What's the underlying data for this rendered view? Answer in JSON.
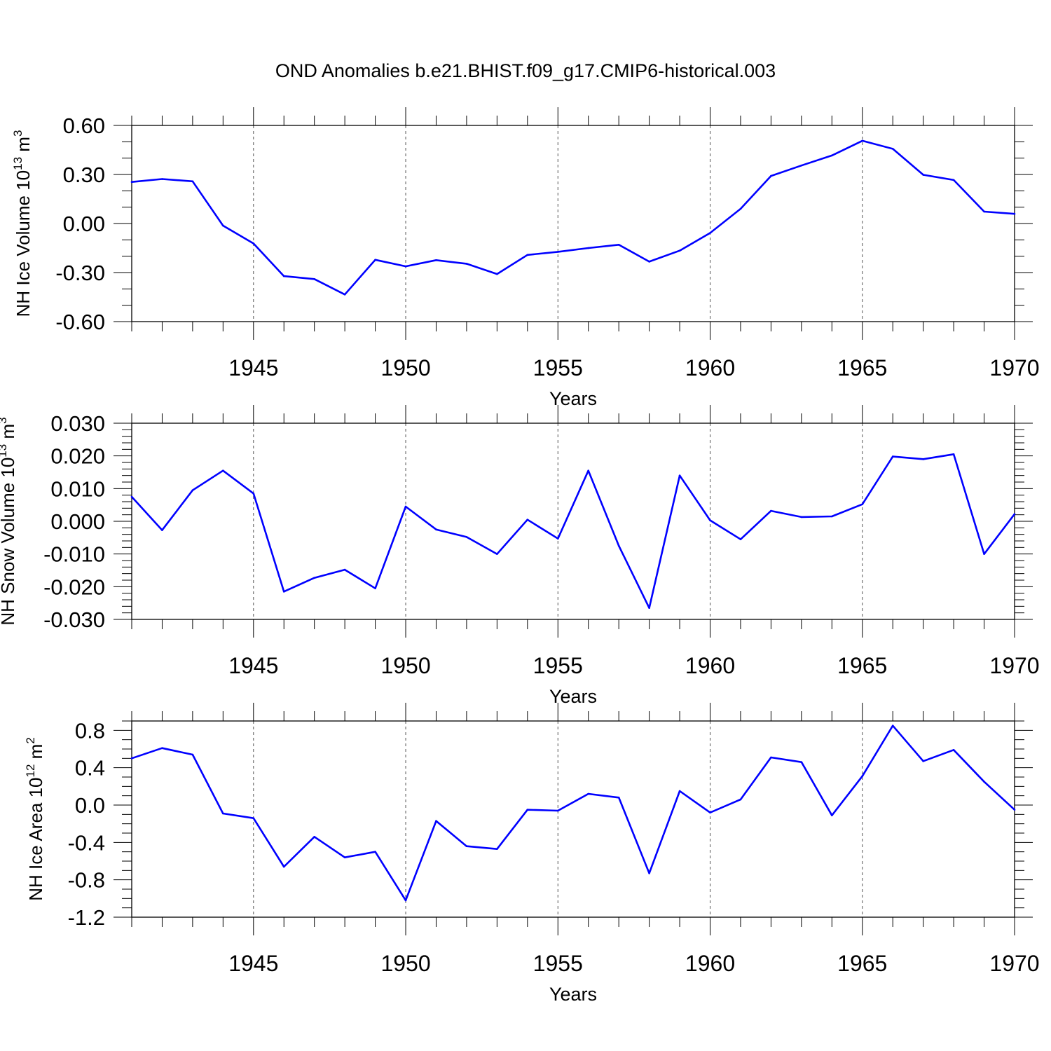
{
  "title": "OND Anomalies b.e21.BHIST.f09_g17.CMIP6-historical.003",
  "line_color": "#0000ff",
  "chart_data": [
    {
      "type": "line",
      "xlabel": "Years",
      "ylabel": {
        "main": "NH Ice Volume 10",
        "exponent": "13",
        "unit": " m",
        "unit_exponent": "3"
      },
      "xlim": [
        1941,
        1970
      ],
      "ylim": [
        -0.6,
        0.6
      ],
      "xticks": [
        1945,
        1950,
        1955,
        1960,
        1965,
        1970
      ],
      "xtick_labels": [
        "1945",
        "1950",
        "1955",
        "1960",
        "1965",
        "1970"
      ],
      "yticks": [
        -0.6,
        -0.3,
        0.0,
        0.3,
        0.6
      ],
      "ytick_labels": [
        "-0.60",
        "-0.30",
        "0.00",
        "0.30",
        "0.60"
      ],
      "y_minor_step": 0.1,
      "grid": "vertical dashed at major x ticks",
      "x": [
        1941,
        1942,
        1943,
        1944,
        1945,
        1946,
        1947,
        1948,
        1949,
        1950,
        1951,
        1952,
        1953,
        1954,
        1955,
        1956,
        1957,
        1958,
        1959,
        1960,
        1961,
        1962,
        1963,
        1964,
        1965,
        1966,
        1967,
        1968,
        1969,
        1970
      ],
      "series": [
        {
          "values": [
            0.254,
            0.272,
            0.258,
            -0.013,
            -0.122,
            -0.322,
            -0.34,
            -0.434,
            -0.222,
            -0.262,
            -0.224,
            -0.246,
            -0.309,
            -0.192,
            -0.173,
            -0.15,
            -0.13,
            -0.233,
            -0.166,
            -0.058,
            0.09,
            0.291,
            0.355,
            0.416,
            0.506,
            0.457,
            0.298,
            0.266,
            0.073,
            0.059
          ]
        }
      ]
    },
    {
      "type": "line",
      "xlabel": "Years",
      "ylabel": {
        "main": "NH Snow Volume 10",
        "exponent": "13",
        "unit": " m",
        "unit_exponent": "3"
      },
      "xlim": [
        1941,
        1970
      ],
      "ylim": [
        -0.03,
        0.03
      ],
      "xticks": [
        1945,
        1950,
        1955,
        1960,
        1965,
        1970
      ],
      "xtick_labels": [
        "1945",
        "1950",
        "1955",
        "1960",
        "1965",
        "1970"
      ],
      "yticks": [
        -0.03,
        -0.02,
        -0.01,
        0.0,
        0.01,
        0.02,
        0.03
      ],
      "ytick_labels": [
        "-0.030",
        "-0.020",
        "-0.010",
        "0.000",
        "0.010",
        "0.020",
        "0.030"
      ],
      "y_minor_step": 0.002,
      "grid": "vertical dashed at major x ticks",
      "x": [
        1941,
        1942,
        1943,
        1944,
        1945,
        1946,
        1947,
        1948,
        1949,
        1950,
        1951,
        1952,
        1953,
        1954,
        1955,
        1956,
        1957,
        1958,
        1959,
        1960,
        1961,
        1962,
        1963,
        1964,
        1965,
        1966,
        1967,
        1968,
        1969,
        1970
      ],
      "series": [
        {
          "values": [
            0.0075,
            -0.0027,
            0.0095,
            0.0155,
            0.0085,
            -0.0215,
            -0.0173,
            -0.0148,
            -0.0205,
            0.0045,
            -0.0025,
            -0.0048,
            -0.01,
            0.0005,
            -0.0053,
            0.0155,
            -0.0075,
            -0.0265,
            0.014,
            0.0003,
            -0.0055,
            0.0032,
            0.0013,
            0.0015,
            0.0052,
            0.0198,
            0.019,
            0.0205,
            -0.01,
            0.0022
          ]
        }
      ]
    },
    {
      "type": "line",
      "xlabel": "Years",
      "ylabel": {
        "main": "NH Ice Area 10",
        "exponent": "12",
        "unit": " m",
        "unit_exponent": "2"
      },
      "xlim": [
        1941,
        1970
      ],
      "ylim": [
        -1.2,
        0.9
      ],
      "xticks": [
        1945,
        1950,
        1955,
        1960,
        1965,
        1970
      ],
      "xtick_labels": [
        "1945",
        "1950",
        "1955",
        "1960",
        "1965",
        "1970"
      ],
      "yticks": [
        -1.2,
        -0.8,
        -0.4,
        0.0,
        0.4,
        0.8
      ],
      "ytick_labels": [
        "-1.2",
        "-0.8",
        "-0.4",
        "0.0",
        "0.4",
        "0.8"
      ],
      "y_minor_step": 0.1,
      "grid": "vertical dashed at major x ticks",
      "x": [
        1941,
        1942,
        1943,
        1944,
        1945,
        1946,
        1947,
        1948,
        1949,
        1950,
        1951,
        1952,
        1953,
        1954,
        1955,
        1956,
        1957,
        1958,
        1959,
        1960,
        1961,
        1962,
        1963,
        1964,
        1965,
        1966,
        1967,
        1968,
        1969,
        1970
      ],
      "series": [
        {
          "values": [
            0.5,
            0.61,
            0.54,
            -0.09,
            -0.14,
            -0.66,
            -0.34,
            -0.56,
            -0.5,
            -1.02,
            -0.17,
            -0.44,
            -0.47,
            -0.05,
            -0.06,
            0.12,
            0.08,
            -0.73,
            0.15,
            -0.08,
            0.06,
            0.51,
            0.46,
            -0.11,
            0.31,
            0.85,
            0.47,
            0.59,
            0.25,
            -0.05
          ]
        }
      ]
    }
  ]
}
